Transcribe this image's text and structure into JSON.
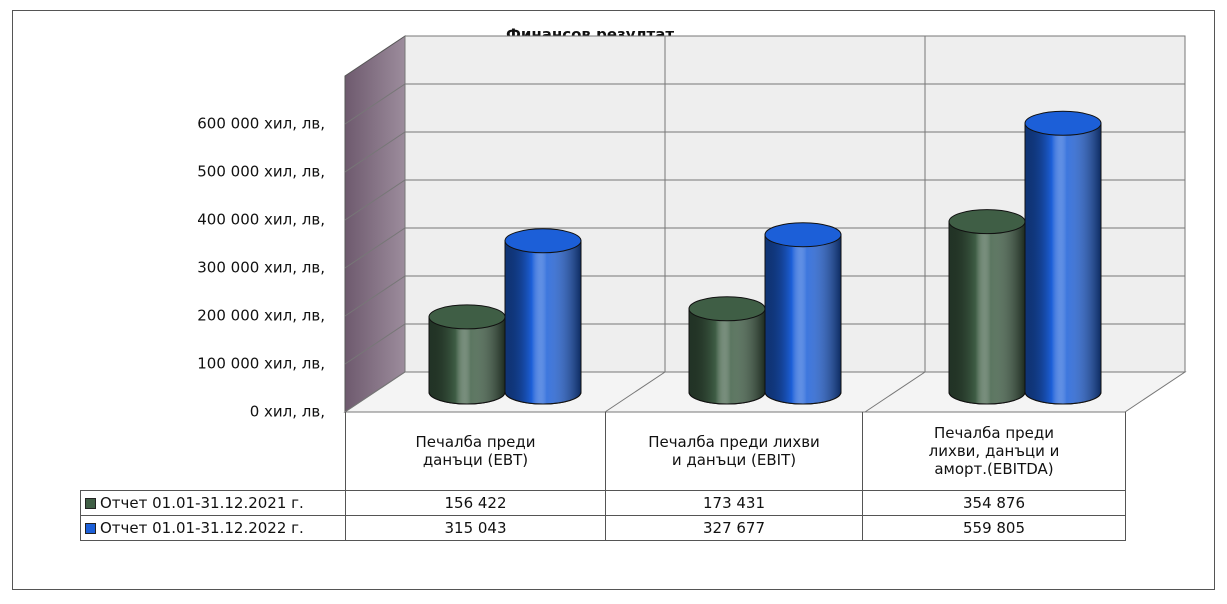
{
  "chart_data": {
    "type": "bar3d",
    "title": "Финансов резултат",
    "categories": [
      "Печалба преди\nданъци (EBT)",
      "Печалба преди лихви\nи данъци (EBIT)",
      "Печалба преди\nлихви, данъци и\nаморт.(EBITDA)"
    ],
    "series": [
      {
        "name": "Отчет 01.01-31.12.2021 г.",
        "color": "#3f5e45",
        "values": [
          156422,
          173431,
          354876
        ],
        "value_labels": [
          "156 422",
          "173 431",
          "354 876"
        ]
      },
      {
        "name": "Отчет 01.01-31.12.2022 г.",
        "color": "#1c5fd8",
        "values": [
          315043,
          327677,
          559805
        ],
        "value_labels": [
          "315 043",
          "327 677",
          "559 805"
        ]
      }
    ],
    "ylim": [
      0,
      700000
    ],
    "yticks": [
      {
        "value": 0,
        "label": "0 хил, лв,"
      },
      {
        "value": 100000,
        "label": "100 000 хил, лв,"
      },
      {
        "value": 200000,
        "label": "200 000 хил, лв,"
      },
      {
        "value": 300000,
        "label": "300 000 хил, лв,"
      },
      {
        "value": 400000,
        "label": "400 000 хил, лв,"
      },
      {
        "value": 500000,
        "label": "500 000 хил, лв,"
      },
      {
        "value": 600000,
        "label": "600 000 хил, лв,"
      }
    ],
    "grid": true
  }
}
